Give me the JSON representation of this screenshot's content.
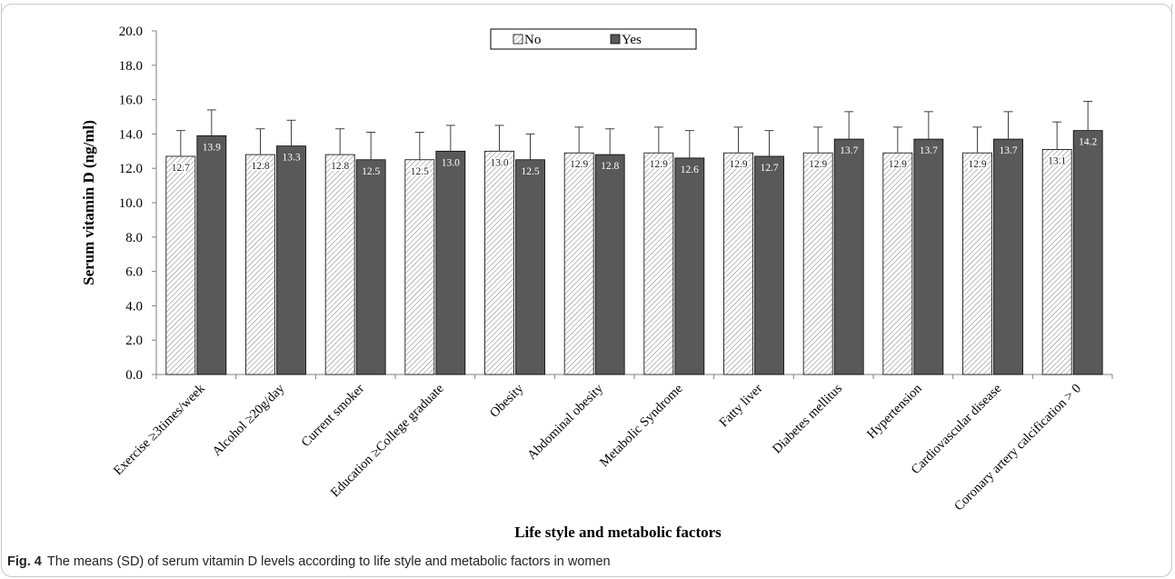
{
  "caption": {
    "label": "Fig. 4",
    "text": "The means (SD) of serum vitamin D levels according to life style and metabolic factors in women"
  },
  "colors": {
    "no_fill": "#ffffff",
    "no_hatch": "#7a7a7a",
    "yes_fill": "#595959",
    "axis": "#808080",
    "error": "#404040"
  },
  "chart_data": {
    "type": "bar",
    "title": "",
    "xlabel": "Life style and metabolic factors",
    "ylabel": "Serum vitamin D (ng/ml)",
    "ylim": [
      0,
      20
    ],
    "yticks": [
      "0.0",
      "2.0",
      "4.0",
      "6.0",
      "8.0",
      "10.0",
      "12.0",
      "14.0",
      "16.0",
      "18.0",
      "20.0"
    ],
    "grid": false,
    "legend_position": "top-center",
    "categories": [
      "Exercise ≥3times/week",
      "Alcohol ≥20g/day",
      "Current smoker",
      "Education ≥College graduate",
      "Obesity",
      "Abdominal obesity",
      "Metabolic Syndrome",
      "Fatty liver",
      "Diabetes mellitus",
      "Hypertension",
      "Cardiovascular disease",
      "Coronary artery calcification > 0"
    ],
    "series": [
      {
        "name": "No",
        "values": [
          12.7,
          12.8,
          12.8,
          12.5,
          13.0,
          12.9,
          12.9,
          12.9,
          12.9,
          12.9,
          12.9,
          13.1
        ],
        "labels": [
          "12.7",
          "12.8",
          "12.8",
          "12.5",
          "13.0",
          "12.9",
          "12.9",
          "12.9",
          "12.9",
          "12.9",
          "12.9",
          "13.1"
        ],
        "error_upper": [
          14.2,
          14.3,
          14.3,
          14.1,
          14.5,
          14.4,
          14.4,
          14.4,
          14.4,
          14.4,
          14.4,
          14.7
        ]
      },
      {
        "name": "Yes",
        "values": [
          13.9,
          13.3,
          12.5,
          13.0,
          12.5,
          12.8,
          12.6,
          12.7,
          13.7,
          13.7,
          13.7,
          14.2
        ],
        "labels": [
          "13.9",
          "13.3",
          "12.5",
          "13.0",
          "12.5",
          "12.8",
          "12.6",
          "12.7",
          "13.7",
          "13.7",
          "13.7",
          "14.2"
        ],
        "error_upper": [
          15.4,
          14.8,
          14.1,
          14.5,
          14.0,
          14.3,
          14.2,
          14.2,
          15.3,
          15.3,
          15.3,
          15.9
        ]
      }
    ]
  }
}
